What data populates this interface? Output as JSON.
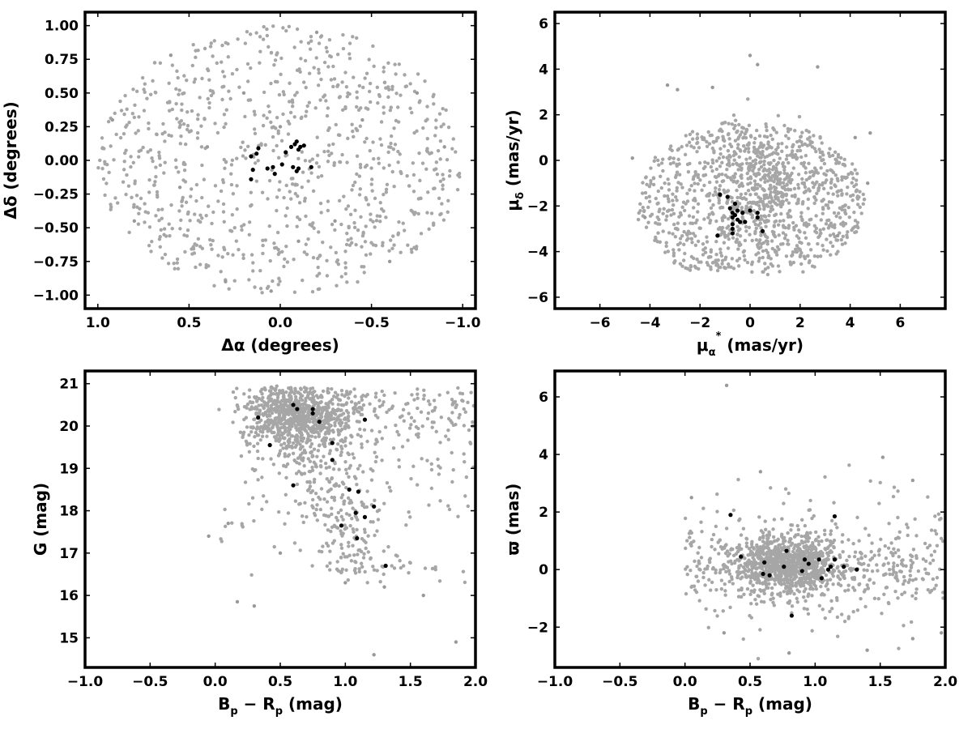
{
  "chart_data": [
    {
      "type": "scatter",
      "id": "sky",
      "xlabel": "Δα (degrees)",
      "ylabel": "Δδ (degrees)",
      "xlim": [
        1.07,
        -1.07
      ],
      "ylim": [
        -1.1,
        1.1
      ],
      "xticks": [
        1.0,
        0.5,
        0.0,
        -0.5,
        -1.0
      ],
      "xtick_labels": [
        "1.0",
        "0.5",
        "0.0",
        "−0.5",
        "−1.0"
      ],
      "yticks": [
        -1.0,
        -0.75,
        -0.5,
        -0.25,
        0.0,
        0.25,
        0.5,
        0.75,
        1.0
      ],
      "ytick_labels": [
        "−1.00",
        "−0.75",
        "−0.50",
        "−0.25",
        "0.00",
        "0.25",
        "0.50",
        "0.75",
        "1.00"
      ],
      "grid": false,
      "series": [
        {
          "color": "#999999",
          "distribution": "uniform within a circle of radius 1.0 deg",
          "points": [
            [
              0.92,
              0.3
            ],
            [
              0.8,
              -0.45
            ],
            [
              0.6,
              0.78
            ],
            [
              0.3,
              -0.9
            ],
            [
              -0.2,
              0.95
            ],
            [
              -0.6,
              -0.75
            ],
            [
              -0.9,
              0.1
            ],
            [
              0.05,
              -0.97
            ],
            [
              0.2,
              0.5
            ],
            [
              -0.45,
              0.3
            ],
            [
              0.55,
              -0.2
            ],
            [
              -0.3,
              -0.45
            ],
            [
              0.0,
              0.25
            ],
            [
              -0.75,
              0.5
            ],
            [
              0.4,
              0.1
            ],
            [
              -0.1,
              -0.6
            ]
          ]
        },
        {
          "color": "#000000",
          "distribution": "compact group near the centre",
          "points": [
            [
              0.16,
              0.03
            ],
            [
              0.13,
              0.05
            ],
            [
              0.12,
              0.09
            ],
            [
              0.15,
              -0.07
            ],
            [
              0.16,
              -0.14
            ],
            [
              0.07,
              -0.06
            ],
            [
              0.03,
              -0.1
            ],
            [
              0.04,
              -0.05
            ],
            [
              -0.01,
              -0.03
            ],
            [
              -0.03,
              0.06
            ],
            [
              -0.07,
              -0.05
            ],
            [
              -0.06,
              0.1
            ],
            [
              -0.08,
              0.12
            ],
            [
              -0.09,
              0.14
            ],
            [
              -0.1,
              0.08
            ],
            [
              -0.11,
              0.1
            ],
            [
              -0.09,
              -0.08
            ],
            [
              -0.1,
              -0.06
            ],
            [
              -0.13,
              0.11
            ],
            [
              -0.17,
              -0.05
            ]
          ]
        }
      ]
    },
    {
      "type": "scatter",
      "id": "pm",
      "xlabel": "μα* (mas/yr)",
      "ylabel": "μδ (mas/yr)",
      "xlim": [
        -7.8,
        7.8
      ],
      "ylim": [
        -6.5,
        6.5
      ],
      "xticks": [
        -6,
        -4,
        -2,
        0,
        2,
        4,
        6
      ],
      "xtick_labels": [
        "−6",
        "−4",
        "−2",
        "0",
        "2",
        "4",
        "6"
      ],
      "yticks": [
        -6,
        -4,
        -2,
        0,
        2,
        4,
        6
      ],
      "ytick_labels": [
        "−6",
        "−4",
        "−2",
        "0",
        "2",
        "4",
        "6"
      ],
      "grid": false,
      "series": [
        {
          "color": "#999999",
          "distribution": "disc centred near (0, -1.8), radius about 4.5 mas/yr, clipped near μδ = -5",
          "points": [
            [
              -4.7,
              0.1
            ],
            [
              -4.2,
              -2.5
            ],
            [
              -3.3,
              3.3
            ],
            [
              -2.9,
              3.1
            ],
            [
              4.8,
              1.2
            ],
            [
              4.2,
              1.0
            ],
            [
              0.0,
              4.6
            ],
            [
              2.7,
              4.1
            ],
            [
              0.3,
              4.2
            ],
            [
              -1.5,
              3.2
            ],
            [
              4.7,
              -1.0
            ],
            [
              3.5,
              -3.3
            ]
          ]
        },
        {
          "color": "#000000",
          "distribution": "tight group",
          "points": [
            [
              -1.2,
              -1.5
            ],
            [
              -0.9,
              -1.6
            ],
            [
              -0.6,
              -1.9
            ],
            [
              -0.5,
              -2.2
            ],
            [
              -0.3,
              -2.3
            ],
            [
              0.0,
              -2.2
            ],
            [
              0.3,
              -2.3
            ],
            [
              0.3,
              -2.5
            ],
            [
              -0.8,
              -2.1
            ],
            [
              -0.7,
              -2.3
            ],
            [
              -0.6,
              -2.4
            ],
            [
              -0.7,
              -2.5
            ],
            [
              -0.5,
              -2.6
            ],
            [
              -0.4,
              -2.7
            ],
            [
              -0.2,
              -2.7
            ],
            [
              -0.7,
              -2.8
            ],
            [
              -0.7,
              -3.0
            ],
            [
              -0.7,
              -3.2
            ],
            [
              0.5,
              -3.1
            ],
            [
              -1.3,
              -3.3
            ]
          ]
        }
      ]
    },
    {
      "type": "scatter",
      "id": "cmd",
      "xlabel": "Bp − Rp (mag)",
      "ylabel": "G (mag)",
      "xlim": [
        -1.0,
        2.0
      ],
      "ylim": [
        14.3,
        21.3
      ],
      "xticks": [
        -1.0,
        -0.5,
        0.0,
        0.5,
        1.0,
        1.5,
        2.0
      ],
      "xtick_labels": [
        "−1.0",
        "−0.5",
        "0.0",
        "0.5",
        "1.0",
        "1.5",
        "2.0"
      ],
      "yticks": [
        15,
        16,
        17,
        18,
        19,
        20,
        21
      ],
      "ytick_labels": [
        "15",
        "16",
        "17",
        "18",
        "19",
        "20",
        "21"
      ],
      "grid": false,
      "series": [
        {
          "color": "#999999",
          "distribution": "dense band at G 19–21, Bp−Rp 0.3–1.0, sequence down to G ≈ 16.5",
          "points": [
            [
              -0.05,
              17.4
            ],
            [
              0.17,
              15.85
            ],
            [
              0.3,
              15.75
            ],
            [
              1.22,
              14.6
            ],
            [
              1.0,
              16.3
            ],
            [
              1.3,
              16.2
            ],
            [
              1.6,
              16.0
            ],
            [
              1.85,
              14.9
            ],
            [
              0.5,
              17.0
            ],
            [
              0.1,
              17.7
            ]
          ]
        },
        {
          "color": "#000000",
          "distribution": "members",
          "points": [
            [
              0.33,
              20.2
            ],
            [
              0.6,
              20.5
            ],
            [
              0.63,
              20.4
            ],
            [
              0.75,
              20.4
            ],
            [
              0.75,
              20.3
            ],
            [
              0.8,
              20.1
            ],
            [
              1.15,
              20.15
            ],
            [
              0.42,
              19.55
            ],
            [
              0.9,
              19.6
            ],
            [
              0.9,
              19.2
            ],
            [
              0.6,
              18.6
            ],
            [
              1.03,
              18.5
            ],
            [
              1.1,
              18.45
            ],
            [
              1.08,
              17.95
            ],
            [
              1.15,
              17.85
            ],
            [
              1.22,
              18.1
            ],
            [
              0.97,
              17.65
            ],
            [
              1.09,
              17.35
            ],
            [
              1.31,
              16.7
            ]
          ]
        }
      ]
    },
    {
      "type": "scatter",
      "id": "plx",
      "xlabel": "Bp − Rp (mag)",
      "ylabel": "ϖ (mas)",
      "xlim": [
        -1.0,
        2.0
      ],
      "ylim": [
        -3.4,
        6.9
      ],
      "xticks": [
        -1.0,
        -0.5,
        0.0,
        0.5,
        1.0,
        1.5,
        2.0
      ],
      "xtick_labels": [
        "−1.0",
        "−0.5",
        "0.0",
        "0.5",
        "1.0",
        "1.5",
        "2.0"
      ],
      "yticks": [
        -2,
        0,
        2,
        4,
        6
      ],
      "ytick_labels": [
        "−2",
        "0",
        "2",
        "4",
        "6"
      ],
      "grid": false,
      "series": [
        {
          "color": "#999999",
          "distribution": "band around ϖ ≈ 0.2, Bp−Rp 0–2, dense at 0.4–1.2",
          "points": [
            [
              0.32,
              6.4
            ],
            [
              1.52,
              3.9
            ],
            [
              1.75,
              3.1
            ],
            [
              0.58,
              3.4
            ],
            [
              0.05,
              2.5
            ],
            [
              1.4,
              -2.8
            ],
            [
              0.8,
              -2.9
            ],
            [
              1.75,
              -2.4
            ],
            [
              1.97,
              -2.2
            ],
            [
              0.3,
              -2.2
            ]
          ]
        },
        {
          "color": "#000000",
          "distribution": "members",
          "points": [
            [
              0.35,
              1.9
            ],
            [
              1.15,
              1.85
            ],
            [
              0.43,
              0.45
            ],
            [
              0.61,
              0.25
            ],
            [
              0.78,
              0.65
            ],
            [
              0.76,
              0.1
            ],
            [
              0.6,
              -0.15
            ],
            [
              0.65,
              -0.2
            ],
            [
              0.92,
              0.35
            ],
            [
              0.95,
              0.2
            ],
            [
              1.03,
              0.35
            ],
            [
              0.9,
              -0.05
            ],
            [
              1.05,
              -0.3
            ],
            [
              1.1,
              0.0
            ],
            [
              1.12,
              0.1
            ],
            [
              1.15,
              0.35
            ],
            [
              1.22,
              0.1
            ],
            [
              1.32,
              0.0
            ],
            [
              0.82,
              -1.6
            ]
          ]
        }
      ]
    }
  ]
}
